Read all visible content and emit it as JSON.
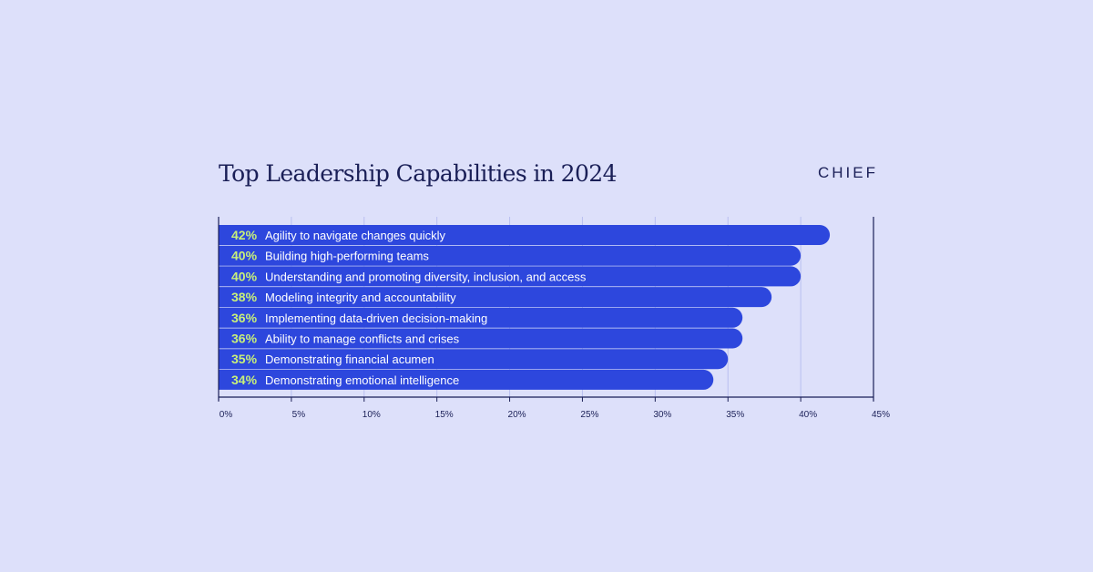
{
  "title": "Top Leadership Capabilities in 2024",
  "brand": "CHIEF",
  "colors": {
    "background": "#dde0fa",
    "bar": "#2d47dd",
    "percent_text": "#c8f07a",
    "label_text": "#ffffff",
    "axis": "#1a1f57",
    "grid": "#b9bff0"
  },
  "chart_data": {
    "type": "bar",
    "orientation": "horizontal",
    "title": "Top Leadership Capabilities in 2024",
    "categories": [
      "Agility to navigate changes quickly",
      "Building high-performing teams",
      "Understanding and promoting diversity, inclusion, and access",
      "Modeling integrity and accountability",
      "Implementing data-driven decision-making",
      "Ability to manage conflicts and crises",
      "Demonstrating financial acumen",
      "Demonstrating emotional intelligence"
    ],
    "values": [
      42,
      40,
      40,
      38,
      36,
      36,
      35,
      34
    ],
    "value_labels": [
      "42%",
      "40%",
      "40%",
      "38%",
      "36%",
      "36%",
      "35%",
      "34%"
    ],
    "xlim": [
      0,
      45
    ],
    "xticks": [
      0,
      5,
      10,
      15,
      20,
      25,
      30,
      35,
      40,
      45
    ],
    "xtick_labels": [
      "0%",
      "5%",
      "10%",
      "15%",
      "20%",
      "25%",
      "30%",
      "35%",
      "40%",
      "45%"
    ],
    "xlabel": "",
    "ylabel": "",
    "grid": "vertical"
  }
}
